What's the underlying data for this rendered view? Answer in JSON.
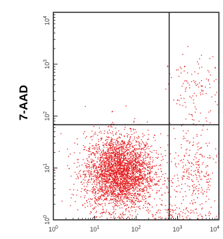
{
  "chart_data": {
    "type": "scatter",
    "title": "",
    "xlabel": "",
    "ylabel": "7-AAD",
    "x_scale": "log",
    "y_scale": "log",
    "xlim": [
      1,
      10000
    ],
    "ylim": [
      1,
      10000
    ],
    "x_ticks": [
      {
        "value": 1,
        "base": "10",
        "exp": "0"
      },
      {
        "value": 10,
        "base": "10",
        "exp": "1"
      },
      {
        "value": 100,
        "base": "10",
        "exp": "2"
      },
      {
        "value": 1000,
        "base": "10",
        "exp": "3"
      },
      {
        "value": 10000,
        "base": "10",
        "exp": "4"
      }
    ],
    "y_ticks": [
      {
        "value": 1,
        "base": "10",
        "exp": "0"
      },
      {
        "value": 10,
        "base": "10",
        "exp": "1"
      },
      {
        "value": 100,
        "base": "10",
        "exp": "2"
      },
      {
        "value": 1000,
        "base": "10",
        "exp": "3"
      },
      {
        "value": 10000,
        "base": "10",
        "exp": "4"
      }
    ],
    "gates": {
      "x": 630,
      "y": 68
    },
    "grid": false,
    "point_color": "#e31a1c",
    "populations": [
      {
        "center_x": 40,
        "center_y": 8,
        "spread_x_decades": 0.42,
        "spread_y_decades": 0.36,
        "count": 3200
      },
      {
        "center_x": 2500,
        "center_y": 8,
        "spread_x_decades": 0.28,
        "spread_y_decades": 0.45,
        "count": 260
      },
      {
        "center_x": 2500,
        "center_y": 300,
        "spread_x_decades": 0.3,
        "spread_y_decades": 0.35,
        "count": 120
      },
      {
        "center_x": 1200,
        "center_y": 1.3,
        "spread_x_decades": 0.5,
        "spread_y_decades": 0.1,
        "count": 110
      }
    ]
  }
}
